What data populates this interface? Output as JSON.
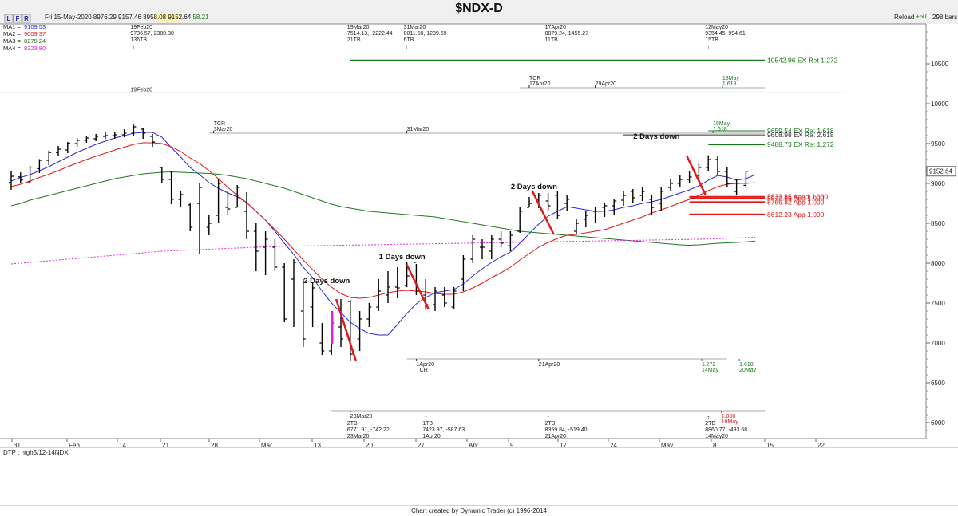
{
  "title": "$NDX-D",
  "toolbar": {
    "buttons": [
      "L",
      "F",
      "R"
    ],
    "info": [
      "Fri 15-May-2020",
      "8976.29",
      "9157.46",
      "8958.08",
      "9152.64",
      "58.21"
    ],
    "reload_label": "Reload",
    "plus_label": "+50",
    "bars_label": "298 bars"
  },
  "ma_legend": [
    {
      "label": "MA1 =",
      "value": "9109.53",
      "color": "#2a2ad8"
    },
    {
      "label": "MA2 =",
      "value": "9009.37",
      "color": "#e01818"
    },
    {
      "label": "MA3 =",
      "value": "8278.24",
      "color": "#1f7a1f"
    },
    {
      "label": "MA4 =",
      "value": "8323.80",
      "color": "#e020e0"
    }
  ],
  "colors": {
    "ma1": "#2a2ad8",
    "ma2": "#e01818",
    "ma3": "#1f7a1f",
    "ma4": "#e020e0",
    "price_box": "#fff2a8",
    "panel": "#f0f0f0"
  },
  "footer": {
    "dtp": "DTP : high5/12-14NDX",
    "credit": "Chart created by Dynamic Trader  (c) 1996-2014"
  },
  "chart_data": {
    "type": "bar",
    "title": "$NDX-D",
    "ylim": [
      5800,
      11000
    ],
    "y_ticks": [
      6000,
      6500,
      7000,
      7500,
      8000,
      8500,
      9000,
      9500,
      10000,
      10500
    ],
    "x_ticks": [
      "31",
      "Feb",
      "14",
      "21",
      "28",
      "Mar",
      "13",
      "20",
      "27",
      "Apr",
      "9",
      "17",
      "24",
      "May",
      "8",
      "15",
      "22"
    ],
    "last_price": "9152.64",
    "bars": [
      [
        9013,
        9160,
        8920,
        9090
      ],
      [
        9082,
        9138,
        9010,
        9043
      ],
      [
        9020,
        9218,
        9000,
        9205
      ],
      [
        9185,
        9305,
        9130,
        9290
      ],
      [
        9290,
        9412,
        9230,
        9388
      ],
      [
        9388,
        9470,
        9350,
        9430
      ],
      [
        9420,
        9520,
        9380,
        9505
      ],
      [
        9500,
        9570,
        9460,
        9540
      ],
      [
        9540,
        9600,
        9510,
        9570
      ],
      [
        9560,
        9620,
        9530,
        9590
      ],
      [
        9590,
        9640,
        9560,
        9600
      ],
      [
        9600,
        9650,
        9560,
        9610
      ],
      [
        9610,
        9680,
        9580,
        9630
      ],
      [
        9640,
        9736,
        9600,
        9710
      ],
      [
        9680,
        9700,
        9560,
        9630
      ],
      [
        9590,
        9620,
        9460,
        9520
      ],
      [
        9200,
        9210,
        9000,
        9050
      ],
      [
        9050,
        9150,
        8740,
        8800
      ],
      [
        8800,
        8900,
        8700,
        8860
      ],
      [
        8730,
        8760,
        8400,
        8450
      ],
      [
        8750,
        9000,
        8110,
        8950
      ],
      [
        8450,
        8600,
        8350,
        8500
      ],
      [
        8600,
        9050,
        8500,
        9000
      ],
      [
        8700,
        8900,
        8600,
        8680
      ],
      [
        8700,
        8980,
        8700,
        8950
      ],
      [
        8650,
        8890,
        8300,
        8400
      ],
      [
        8400,
        8500,
        7900,
        8150
      ],
      [
        8200,
        8400,
        7850,
        8300
      ],
      [
        8200,
        8300,
        7900,
        7950
      ],
      [
        7950,
        8000,
        7260,
        7300
      ],
      [
        7800,
        8050,
        7200,
        8010
      ],
      [
        7400,
        7800,
        6950,
        7050
      ],
      [
        7450,
        7750,
        7200,
        7690
      ],
      [
        7000,
        7250,
        6850,
        6900
      ],
      [
        6900,
        7400,
        6850,
        7250
      ],
      [
        7200,
        7550,
        6950,
        7050
      ],
      [
        7520,
        7540,
        6771,
        6860
      ],
      [
        7050,
        7400,
        6900,
        7300
      ],
      [
        7300,
        7500,
        7200,
        7450
      ],
      [
        7450,
        7800,
        7400,
        7650
      ],
      [
        7600,
        7900,
        7500,
        7700
      ],
      [
        7700,
        7950,
        7560,
        7690
      ],
      [
        7720,
        8011,
        7700,
        7840
      ],
      [
        8010,
        7990,
        7600,
        7650
      ],
      [
        7600,
        7800,
        7424,
        7480
      ],
      [
        7480,
        7700,
        7400,
        7650
      ],
      [
        7600,
        7700,
        7450,
        7500
      ],
      [
        7450,
        7700,
        7420,
        7650
      ],
      [
        7800,
        8100,
        7650,
        8050
      ],
      [
        8050,
        8350,
        8000,
        8300
      ],
      [
        8200,
        8300,
        8050,
        8200
      ],
      [
        8150,
        8350,
        8050,
        8300
      ],
      [
        8300,
        8400,
        8200,
        8250
      ],
      [
        8220,
        8400,
        8150,
        8350
      ],
      [
        8400,
        8700,
        8380,
        8650
      ],
      [
        8700,
        8830,
        8700,
        8750
      ],
      [
        8800,
        8880,
        8690,
        8850
      ],
      [
        8780,
        8879,
        8650,
        8720
      ],
      [
        8850,
        8900,
        8550,
        8600
      ],
      [
        8750,
        8850,
        8650,
        8800
      ],
      [
        8400,
        8550,
        8360,
        8500
      ],
      [
        8550,
        8650,
        8450,
        8600
      ],
      [
        8650,
        8700,
        8500,
        8650
      ],
      [
        8700,
        8750,
        8580,
        8720
      ],
      [
        8720,
        8800,
        8600,
        8780
      ],
      [
        8790,
        8900,
        8720,
        8850
      ],
      [
        8900,
        8930,
        8750,
        8820
      ],
      [
        8850,
        8950,
        8780,
        8900
      ],
      [
        8800,
        8850,
        8600,
        8700
      ],
      [
        8750,
        8950,
        8650,
        8900
      ],
      [
        8950,
        9050,
        8900,
        9000
      ],
      [
        9000,
        9100,
        8950,
        9050
      ],
      [
        9050,
        9150,
        9000,
        9080
      ],
      [
        9100,
        9250,
        9050,
        9200
      ],
      [
        9200,
        9354,
        9150,
        9300
      ],
      [
        9300,
        9340,
        9100,
        9150
      ],
      [
        9150,
        9200,
        8950,
        9000
      ],
      [
        8900,
        9050,
        8860,
        9000
      ],
      [
        8976,
        9157,
        8958,
        9152
      ]
    ],
    "series": [
      {
        "name": "MA1",
        "values": [
          9030,
          9075,
          9110,
          9160,
          9210,
          9270,
          9330,
          9390,
          9440,
          9490,
          9530,
          9570,
          9600,
          9630,
          9640,
          9640,
          9580,
          9450,
          9330,
          9200,
          9110,
          9010,
          8940,
          8880,
          8830,
          8760,
          8650,
          8540,
          8400,
          8250,
          8110,
          7950,
          7820,
          7650,
          7500,
          7380,
          7260,
          7180,
          7120,
          7100,
          7100,
          7230,
          7370,
          7490,
          7570,
          7630,
          7650,
          7670,
          7740,
          7840,
          7930,
          8010,
          8080,
          8140,
          8250,
          8370,
          8490,
          8590,
          8650,
          8710,
          8690,
          8670,
          8650,
          8650,
          8670,
          8700,
          8720,
          8750,
          8770,
          8800,
          8840,
          8880,
          8920,
          8970,
          9040,
          9100,
          9080,
          9040,
          9060,
          9109
        ]
      },
      {
        "name": "MA2",
        "values": [
          8960,
          8990,
          9030,
          9075,
          9115,
          9160,
          9210,
          9255,
          9300,
          9340,
          9380,
          9420,
          9455,
          9490,
          9510,
          9510,
          9500,
          9460,
          9400,
          9320,
          9250,
          9160,
          9060,
          8950,
          8850,
          8760,
          8650,
          8540,
          8420,
          8300,
          8170,
          8040,
          7920,
          7800,
          7700,
          7620,
          7570,
          7560,
          7570,
          7600,
          7630,
          7650,
          7660,
          7650,
          7640,
          7620,
          7610,
          7610,
          7640,
          7690,
          7750,
          7820,
          7880,
          7950,
          8040,
          8120,
          8200,
          8260,
          8310,
          8350,
          8360,
          8380,
          8400,
          8420,
          8460,
          8500,
          8540,
          8580,
          8630,
          8670,
          8710,
          8760,
          8800,
          8850,
          8910,
          8960,
          8990,
          9000,
          9000,
          9009
        ]
      },
      {
        "name": "MA3",
        "values": [
          8720,
          8750,
          8790,
          8820,
          8850,
          8880,
          8910,
          8940,
          8970,
          9000,
          9030,
          9060,
          9080,
          9100,
          9120,
          9130,
          9140,
          9145,
          9140,
          9135,
          9130,
          9125,
          9115,
          9100,
          9080,
          9060,
          9030,
          9000,
          8970,
          8940,
          8900,
          8860,
          8820,
          8780,
          8740,
          8710,
          8690,
          8670,
          8650,
          8640,
          8630,
          8620,
          8610,
          8600,
          8590,
          8580,
          8560,
          8540,
          8520,
          8500,
          8480,
          8460,
          8440,
          8420,
          8400,
          8390,
          8380,
          8370,
          8360,
          8350,
          8340,
          8330,
          8320,
          8310,
          8300,
          8290,
          8280,
          8270,
          8260,
          8250,
          8240,
          8230,
          8225,
          8230,
          8240,
          8250,
          8255,
          8260,
          8268,
          8278
        ]
      },
      {
        "name": "MA4",
        "values": [
          7990,
          8000,
          8010,
          8020,
          8030,
          8040,
          8050,
          8060,
          8070,
          8080,
          8090,
          8100,
          8110,
          8120,
          8130,
          8140,
          8150,
          8155,
          8160,
          8165,
          8170,
          8175,
          8180,
          8185,
          8190,
          8195,
          8200,
          8205,
          8210,
          8212,
          8214,
          8216,
          8218,
          8220,
          8222,
          8224,
          8226,
          8228,
          8230,
          8232,
          8234,
          8236,
          8238,
          8240,
          8242,
          8244,
          8246,
          8248,
          8250,
          8252,
          8254,
          8256,
          8258,
          8260,
          8262,
          8264,
          8266,
          8268,
          8270,
          8272,
          8274,
          8276,
          8278,
          8280,
          8282,
          8284,
          8286,
          8288,
          8290,
          8292,
          8294,
          8296,
          8298,
          8300,
          8304,
          8308,
          8312,
          8316,
          8320,
          8323.8
        ]
      }
    ],
    "levels": [
      {
        "price": 10542.96,
        "label": "10542.96 EX Ret 1.272",
        "color": "#1a7a1a",
        "from": 36,
        "to": 80,
        "thick": true
      },
      {
        "price": 9659.54,
        "label": "9659.54 EX Ret 1.618",
        "color": "#1a7a1a",
        "from": 74,
        "to": 80,
        "thick": false
      },
      {
        "price": 9608.98,
        "label": "9608.98 EX Ret 2.618",
        "color": "#333333",
        "from": 65,
        "to": 80,
        "thick": false
      },
      {
        "price": 9488.73,
        "label": "9488.73 EX Ret 1.272",
        "color": "#1a7a1a",
        "from": 74,
        "to": 80,
        "thick": true
      },
      {
        "price": 8832.85,
        "label": "8832.85 Apnd 1.000",
        "color": "#e01818",
        "from": 72,
        "to": 80,
        "thick": true
      },
      {
        "price": 8812.86,
        "label": "8812.86 App 1.000",
        "color": "#e01818",
        "from": 72,
        "to": 80,
        "thick": true
      },
      {
        "price": 8766.82,
        "label": "8766.82 App 1.000",
        "color": "#e01818",
        "from": 72,
        "to": 80,
        "thick": true
      },
      {
        "price": 8612.23,
        "label": "8612.23 App 1.000",
        "color": "#e01818",
        "from": 72,
        "to": 80,
        "thick": true
      }
    ],
    "swings": [
      {
        "idx": 13,
        "y": 9736.57,
        "text": [
          "19Feb20",
          "9736.57, 2380.30",
          "136TB"
        ],
        "pos": "top"
      },
      {
        "idx": 36,
        "y": 7514.13,
        "text": [
          "19Mar20",
          "7514.13, -2222.44",
          "21TB"
        ],
        "pos": "top"
      },
      {
        "idx": 42,
        "y": 8011.6,
        "text": [
          "31Mar20",
          "8011.60, 1239.69",
          "6TB"
        ],
        "pos": "top"
      },
      {
        "idx": 57,
        "y": 8879.24,
        "text": [
          "17Apr20",
          "8879.24, 1455.27",
          "11TB"
        ],
        "pos": "top"
      },
      {
        "idx": 74,
        "y": 9354.45,
        "text": [
          "12May20",
          "9354.45, 994.61",
          "15TB"
        ],
        "pos": "top"
      },
      {
        "idx": 36,
        "y": 6771.91,
        "text": [
          "2TB",
          "6771.91, -742.22",
          "23Mar20"
        ],
        "pos": "bottom"
      },
      {
        "idx": 44,
        "y": 7423.97,
        "text": [
          "1TB",
          "7423.97, -587.63",
          "1Apr20"
        ],
        "pos": "bottom"
      },
      {
        "idx": 57,
        "y": 8359.84,
        "text": [
          "2TB",
          "8359.84, -519.40",
          "21Apr20"
        ],
        "pos": "bottom"
      },
      {
        "idx": 74,
        "y": 8860.77,
        "text": [
          "2TB",
          "8860.77, -493.68",
          "14May20"
        ],
        "pos": "bottom"
      }
    ],
    "annotations": [
      {
        "text": "2 Days down",
        "idx": 33.5,
        "y": 7750
      },
      {
        "text": "1 Days down",
        "idx": 41.5,
        "y": 8050
      },
      {
        "text": "2 Days down",
        "idx": 55.5,
        "y": 8930
      },
      {
        "text": "2 Days down",
        "idx": 68.5,
        "y": 9560
      }
    ],
    "down_lines": [
      [
        34.5,
        7550,
        36.6,
        6771
      ],
      [
        42,
        7980,
        44.3,
        7424
      ],
      [
        55.3,
        8910,
        57.6,
        8360
      ],
      [
        71.7,
        9350,
        73.7,
        8861
      ]
    ],
    "time_bands": [
      {
        "y": 10200,
        "from": 54,
        "to": 80,
        "labels": [
          {
            "idx": 55,
            "lines": [
              "TCR",
              "17Apr20"
            ]
          },
          {
            "idx": 62,
            "lines": [
              "29Apr20"
            ]
          },
          {
            "idx": 75.5,
            "lines": [
              "18May",
              "1.618"
            ],
            "green": true
          }
        ]
      },
      {
        "y": 9630,
        "from": 21,
        "to": 80,
        "labels": [
          {
            "idx": 21.5,
            "lines": [
              "TCR",
              "3Mar20"
            ]
          },
          {
            "idx": 42,
            "lines": [
              "31Mar20"
            ]
          },
          {
            "idx": 74.5,
            "lines": [
              "15May",
              "1.618"
            ],
            "green": true
          }
        ]
      },
      {
        "y": 6800,
        "from": 42,
        "to": 76,
        "labels": [
          {
            "idx": 43,
            "lines": [
              "1Apr20",
              "TCR"
            ],
            "below": true
          },
          {
            "idx": 56,
            "lines": [
              "21Apr20"
            ],
            "below": true
          },
          {
            "idx": 73.3,
            "lines": [
              "1.272",
              "14May"
            ],
            "below": true,
            "green": true
          },
          {
            "idx": 77.3,
            "lines": [
              "1.618",
              "20May"
            ],
            "below": true,
            "green": true
          }
        ]
      },
      {
        "y": 6150,
        "from": 34,
        "to": 80,
        "labels": [
          {
            "idx": 36,
            "lines": [
              "23Mar20"
            ],
            "below": true
          },
          {
            "idx": 75.4,
            "lines": [
              "1.000",
              "18May"
            ],
            "below": true,
            "red": true
          }
        ]
      }
    ],
    "top_marker_label": "19Feb20"
  }
}
